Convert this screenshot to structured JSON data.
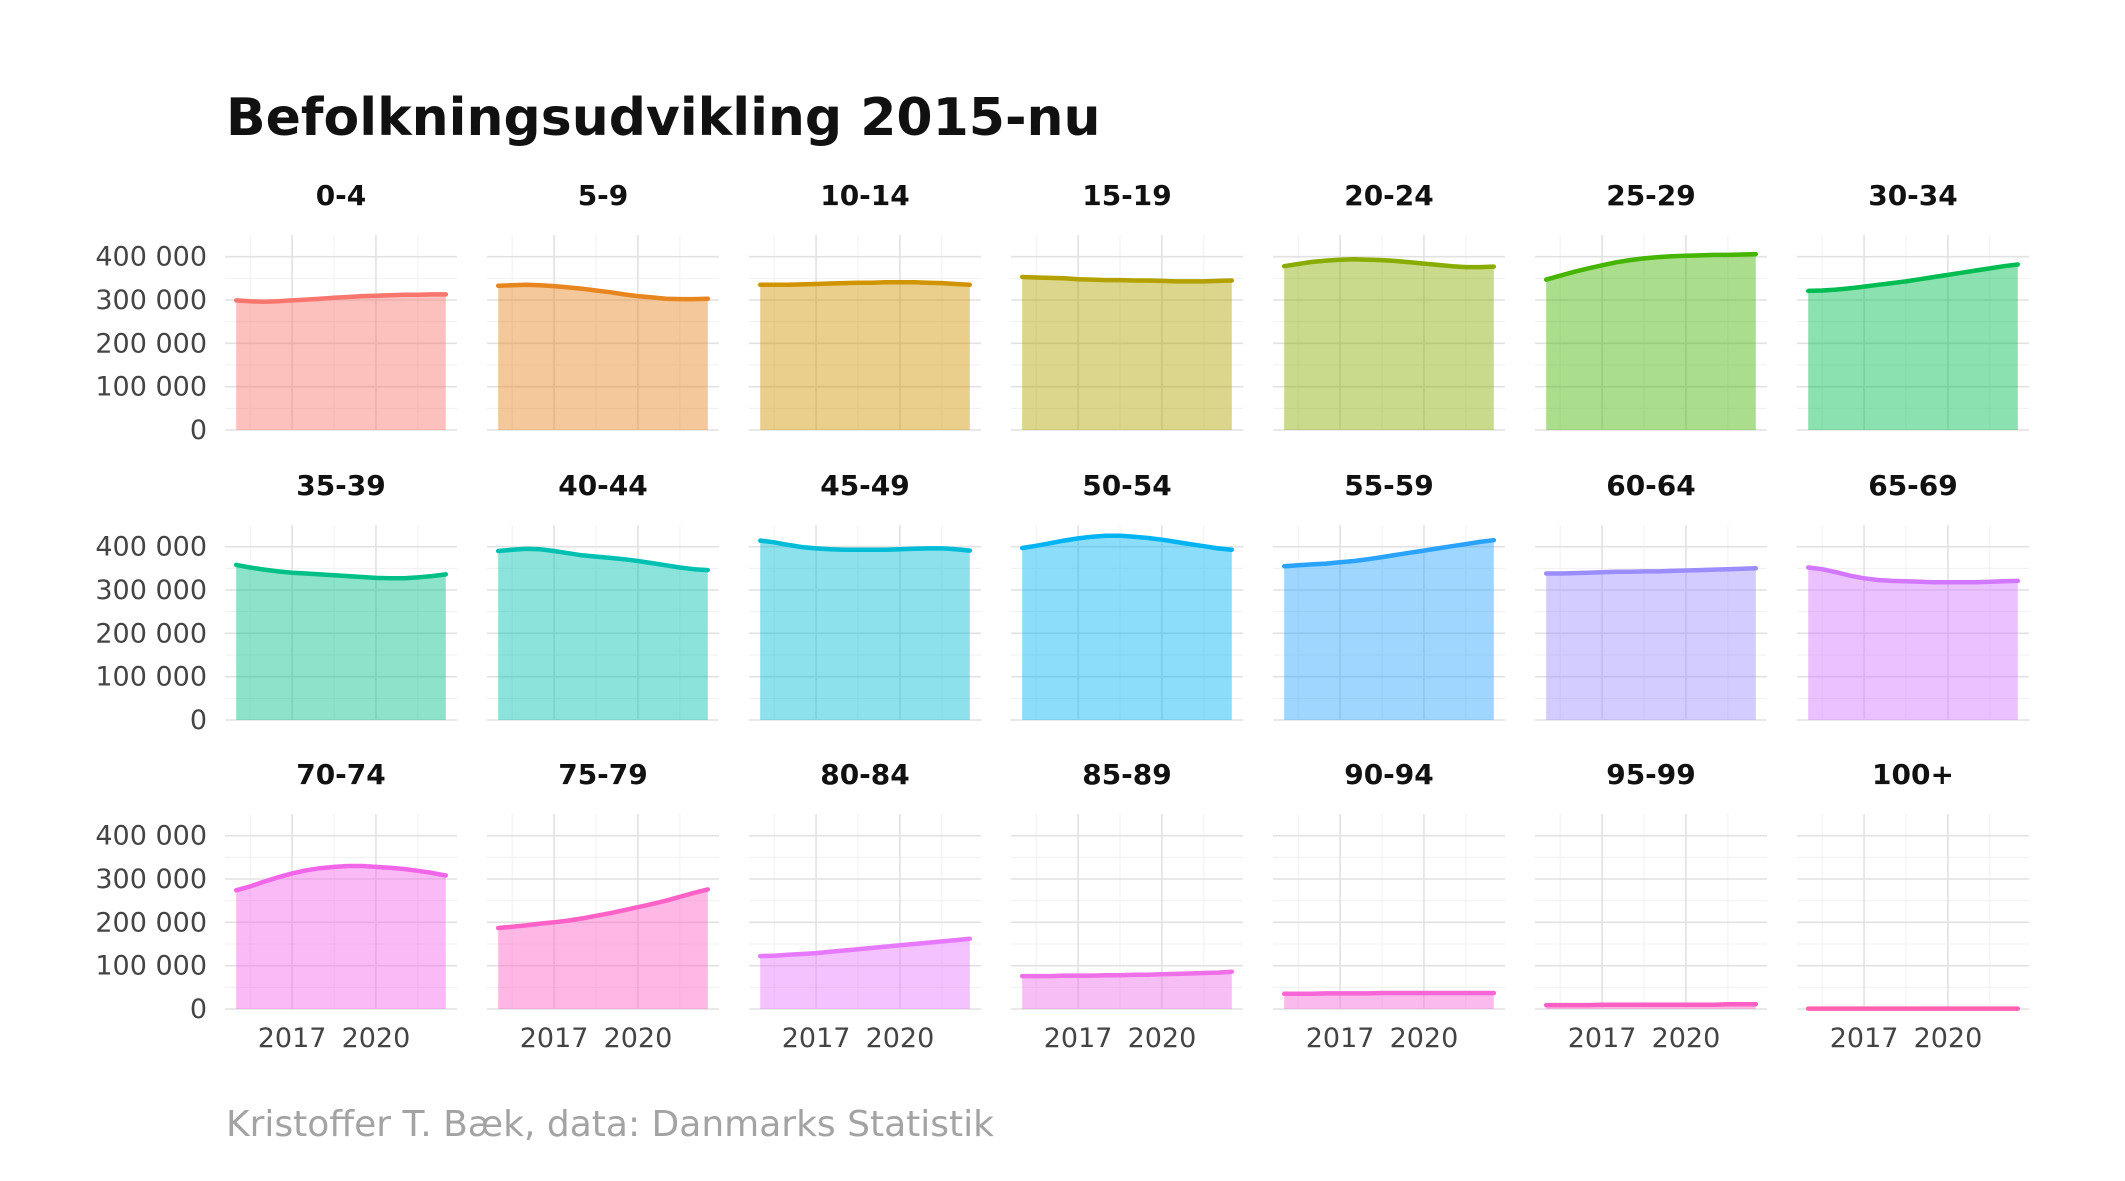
{
  "chart_data": {
    "type": "area",
    "layout": "small-multiples",
    "title": "Befolkningsudvikling 2015-nu",
    "caption": "Kristoffer T. Bæk, data: Danmarks Statistik",
    "x": [
      2015.0,
      2015.5,
      2016.0,
      2016.5,
      2017.0,
      2017.5,
      2018.0,
      2018.5,
      2019.0,
      2019.5,
      2020.0,
      2020.5,
      2021.0,
      2021.5,
      2022.0,
      2022.5
    ],
    "xticks": [
      2017,
      2020
    ],
    "xticklabels": [
      "2017",
      "2020"
    ],
    "xlim": [
      2014.6,
      2022.9
    ],
    "ylim": [
      0,
      450000
    ],
    "yticks": [
      0,
      100000,
      200000,
      300000,
      400000
    ],
    "yticklabels": [
      "0",
      "100 000",
      "200 000",
      "300 000",
      "400 000"
    ],
    "grid": true,
    "legend": "none",
    "series": [
      {
        "name": "0-4",
        "color": "#F8766D",
        "values": [
          299000,
          297000,
          296000,
          297000,
          299000,
          301000,
          303000,
          305000,
          307000,
          309000,
          310000,
          311000,
          312000,
          312000,
          313000,
          313000
        ]
      },
      {
        "name": "5-9",
        "color": "#E7851E",
        "values": [
          333000,
          334000,
          335000,
          334000,
          332000,
          329000,
          326000,
          322000,
          318000,
          313000,
          309000,
          306000,
          303000,
          302000,
          302000,
          303000
        ]
      },
      {
        "name": "10-14",
        "color": "#D09400",
        "values": [
          335000,
          335000,
          335000,
          336000,
          337000,
          338000,
          339000,
          340000,
          340000,
          341000,
          341000,
          341000,
          340000,
          339000,
          337000,
          335000
        ]
      },
      {
        "name": "15-19",
        "color": "#B2A100",
        "values": [
          353000,
          352000,
          351000,
          350000,
          348000,
          347000,
          346000,
          346000,
          345000,
          345000,
          344000,
          343000,
          343000,
          343000,
          344000,
          345000
        ]
      },
      {
        "name": "20-24",
        "color": "#89AC00",
        "values": [
          378000,
          383000,
          388000,
          391000,
          393000,
          394000,
          393000,
          392000,
          390000,
          387000,
          384000,
          381000,
          378000,
          376000,
          376000,
          377000
        ]
      },
      {
        "name": "25-29",
        "color": "#45B500",
        "values": [
          347000,
          356000,
          365000,
          373000,
          380000,
          387000,
          392000,
          396000,
          399000,
          401000,
          402000,
          403000,
          404000,
          404000,
          405000,
          406000
        ]
      },
      {
        "name": "30-34",
        "color": "#00BC51",
        "values": [
          321000,
          322000,
          324000,
          327000,
          331000,
          335000,
          339000,
          343000,
          348000,
          353000,
          358000,
          363000,
          368000,
          373000,
          378000,
          382000
        ]
      },
      {
        "name": "35-39",
        "color": "#00C087",
        "values": [
          358000,
          352000,
          347000,
          343000,
          340000,
          338000,
          336000,
          334000,
          332000,
          330000,
          328000,
          327000,
          327000,
          329000,
          332000,
          336000
        ]
      },
      {
        "name": "40-44",
        "color": "#00C0B2",
        "values": [
          390000,
          393000,
          395000,
          394000,
          390000,
          385000,
          380000,
          377000,
          374000,
          371000,
          367000,
          362000,
          357000,
          352000,
          348000,
          346000
        ]
      },
      {
        "name": "45-49",
        "color": "#00BCD6",
        "values": [
          414000,
          410000,
          404000,
          399000,
          396000,
          394000,
          393000,
          393000,
          393000,
          393000,
          394000,
          395000,
          396000,
          396000,
          394000,
          391000
        ]
      },
      {
        "name": "50-54",
        "color": "#00B3F2",
        "values": [
          397000,
          402000,
          408000,
          414000,
          419000,
          423000,
          425000,
          425000,
          423000,
          420000,
          416000,
          411000,
          406000,
          401000,
          396000,
          393000
        ]
      },
      {
        "name": "55-59",
        "color": "#29A3FF",
        "values": [
          355000,
          357000,
          359000,
          361000,
          364000,
          367000,
          371000,
          376000,
          381000,
          386000,
          391000,
          396000,
          401000,
          406000,
          411000,
          415000
        ]
      },
      {
        "name": "60-64",
        "color": "#9C8DFF",
        "values": [
          338000,
          338000,
          339000,
          340000,
          341000,
          342000,
          342000,
          343000,
          343000,
          344000,
          345000,
          346000,
          347000,
          348000,
          349000,
          350000
        ]
      },
      {
        "name": "65-69",
        "color": "#D277FF",
        "values": [
          352000,
          348000,
          341000,
          333000,
          327000,
          323000,
          321000,
          320000,
          319000,
          318000,
          318000,
          318000,
          318000,
          319000,
          320000,
          321000
        ]
      },
      {
        "name": "70-74",
        "color": "#F166E8",
        "values": [
          274000,
          283000,
          294000,
          304000,
          313000,
          320000,
          325000,
          328000,
          330000,
          330000,
          328000,
          326000,
          323000,
          319000,
          314000,
          308000
        ]
      },
      {
        "name": "75-79",
        "color": "#FF61C7",
        "values": [
          187000,
          190000,
          193000,
          197000,
          200000,
          204000,
          209000,
          215000,
          221000,
          228000,
          235000,
          242000,
          250000,
          259000,
          268000,
          276000
        ]
      },
      {
        "name": "80-84",
        "color": "#E679FF",
        "values": [
          122000,
          123000,
          125000,
          127000,
          129000,
          132000,
          135000,
          138000,
          141000,
          144000,
          147000,
          150000,
          153000,
          156000,
          159000,
          162000
        ]
      },
      {
        "name": "85-89",
        "color": "#EE6FE8",
        "values": [
          76000,
          76000,
          76000,
          77000,
          77000,
          77000,
          78000,
          78000,
          79000,
          79000,
          80000,
          81000,
          82000,
          83000,
          84000,
          86000
        ]
      },
      {
        "name": "90-94",
        "color": "#F766D6",
        "values": [
          35000,
          35000,
          35000,
          36000,
          36000,
          36000,
          36000,
          37000,
          37000,
          37000,
          37000,
          37000,
          37000,
          37000,
          37000,
          37000
        ]
      },
      {
        "name": "95-99",
        "color": "#FA5FC4",
        "values": [
          9000,
          9000,
          9000,
          9000,
          10000,
          10000,
          10000,
          10000,
          10000,
          10000,
          10000,
          10000,
          10000,
          11000,
          11000,
          11000
        ]
      },
      {
        "name": "100+",
        "color": "#FF5FB0",
        "values": [
          1000,
          1000,
          1000,
          1000,
          1000,
          1000,
          1000,
          1000,
          1000,
          1000,
          1000,
          1000,
          1000,
          1000,
          1000,
          1000
        ]
      }
    ]
  }
}
